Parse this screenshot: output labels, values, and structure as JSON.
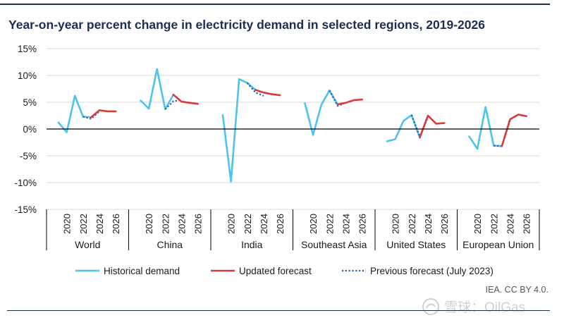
{
  "chart_data": {
    "type": "line",
    "title": "Year-on-year percent change in electricity demand in selected regions, 2019-2026",
    "ylim": [
      -15,
      15
    ],
    "yticks": [
      -15,
      -10,
      -5,
      0,
      5,
      10,
      15
    ],
    "ytick_labels": [
      "-15%",
      "-10%",
      "-5%",
      "0%",
      "5%",
      "10%",
      "15%"
    ],
    "years": [
      2019,
      2020,
      2021,
      2022,
      2023,
      2024,
      2025,
      2026
    ],
    "tick_years": [
      "2020",
      "2022",
      "2024",
      "2026"
    ],
    "legend_position": "bottom",
    "colors": {
      "historical": "#4fc3f0",
      "updated": "#d93a3a",
      "previous": "#2e5dab",
      "axis": "#000000",
      "grid": "#d9d9d9"
    },
    "legend": [
      {
        "key": "historical",
        "label": "Historical demand"
      },
      {
        "key": "updated",
        "label": "Updated forecast"
      },
      {
        "key": "previous",
        "label": "Previous forecast (July 2023)"
      }
    ],
    "regions": [
      {
        "name": "World",
        "historical": [
          [
            2019,
            1.2
          ],
          [
            2020,
            -0.6
          ],
          [
            2021,
            6.2
          ],
          [
            2022,
            2.3
          ],
          [
            2023,
            2.2
          ]
        ],
        "updated": [
          [
            2023,
            2.2
          ],
          [
            2024,
            3.5
          ],
          [
            2025,
            3.3
          ],
          [
            2026,
            3.3
          ]
        ],
        "previous": [
          [
            2022,
            2.3
          ],
          [
            2023,
            1.9
          ],
          [
            2024,
            3.3
          ]
        ]
      },
      {
        "name": "China",
        "historical": [
          [
            2019,
            5.3
          ],
          [
            2020,
            3.8
          ],
          [
            2021,
            11.2
          ],
          [
            2022,
            3.7
          ],
          [
            2023,
            6.4
          ]
        ],
        "updated": [
          [
            2023,
            6.4
          ],
          [
            2024,
            5.1
          ],
          [
            2025,
            4.9
          ],
          [
            2026,
            4.7
          ]
        ],
        "previous": [
          [
            2022,
            3.7
          ],
          [
            2023,
            5.2
          ],
          [
            2024,
            5.4
          ]
        ]
      },
      {
        "name": "India",
        "historical": [
          [
            2019,
            2.6
          ],
          [
            2020,
            -9.8
          ],
          [
            2021,
            9.3
          ],
          [
            2022,
            8.6
          ],
          [
            2023,
            7.3
          ]
        ],
        "updated": [
          [
            2023,
            7.3
          ],
          [
            2024,
            6.8
          ],
          [
            2025,
            6.5
          ],
          [
            2026,
            6.3
          ]
        ],
        "previous": [
          [
            2022,
            8.6
          ],
          [
            2023,
            6.8
          ],
          [
            2024,
            6.2
          ]
        ]
      },
      {
        "name": "Southeast Asia",
        "historical": [
          [
            2019,
            4.8
          ],
          [
            2020,
            -1.1
          ],
          [
            2021,
            4.5
          ],
          [
            2022,
            7.2
          ],
          [
            2023,
            4.6
          ]
        ],
        "updated": [
          [
            2023,
            4.6
          ],
          [
            2024,
            4.9
          ],
          [
            2025,
            5.4
          ],
          [
            2026,
            5.5
          ]
        ],
        "previous": [
          [
            2022,
            7.2
          ],
          [
            2023,
            4.3
          ],
          [
            2024,
            4.9
          ]
        ]
      },
      {
        "name": "United States",
        "historical": [
          [
            2019,
            -2.3
          ],
          [
            2020,
            -1.9
          ],
          [
            2021,
            1.5
          ],
          [
            2022,
            2.6
          ],
          [
            2023,
            -1.6
          ]
        ],
        "updated": [
          [
            2023,
            -1.6
          ],
          [
            2024,
            2.5
          ],
          [
            2025,
            1.0
          ],
          [
            2026,
            1.1
          ]
        ],
        "previous": [
          [
            2022,
            2.6
          ],
          [
            2023,
            -1.4
          ],
          [
            2024,
            2.2
          ]
        ]
      },
      {
        "name": "European Union",
        "historical": [
          [
            2019,
            -1.4
          ],
          [
            2020,
            -3.7
          ],
          [
            2021,
            4.1
          ],
          [
            2022,
            -3.1
          ],
          [
            2023,
            -3.2
          ]
        ],
        "updated": [
          [
            2023,
            -3.2
          ],
          [
            2024,
            1.8
          ],
          [
            2025,
            2.7
          ],
          [
            2026,
            2.4
          ]
        ],
        "previous": [
          [
            2022,
            -3.1
          ],
          [
            2023,
            -3.2
          ],
          [
            2024,
            1.6
          ]
        ]
      }
    ]
  },
  "footer": {
    "source": "IEA. CC BY 4.0.",
    "watermark": "雪球：OilGas"
  }
}
